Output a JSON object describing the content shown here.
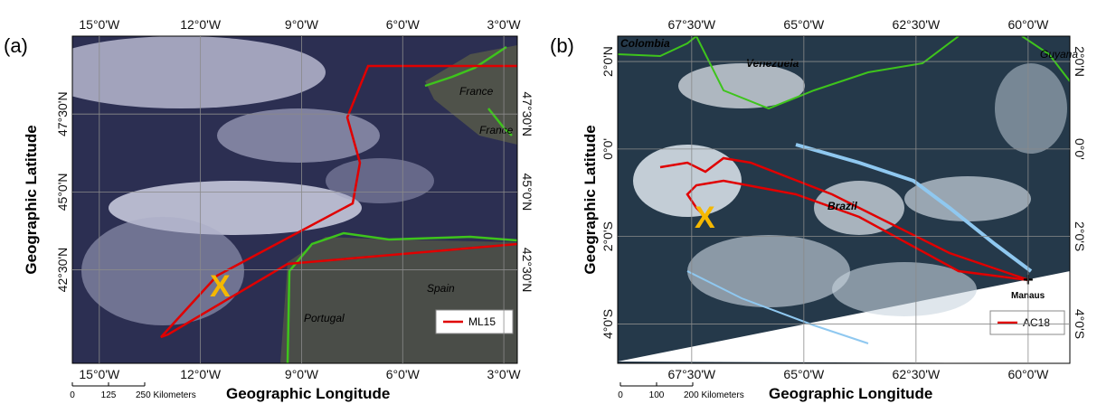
{
  "panels": [
    {
      "label": "(a)",
      "y_axis_title": "Geographic Latitude",
      "x_axis_title": "Geographic Longitude",
      "xlim": [
        -15.8,
        -2.6
      ],
      "ylim": [
        39.5,
        50
      ],
      "xticks": [
        {
          "value": -15,
          "label": "15°0'W"
        },
        {
          "value": -12,
          "label": "12°0'W"
        },
        {
          "value": -9,
          "label": "9°0'W"
        },
        {
          "value": -6,
          "label": "6°0'W"
        },
        {
          "value": -3,
          "label": "3°0'W"
        }
      ],
      "yticks": [
        {
          "value": 47.5,
          "label": "47°30'N"
        },
        {
          "value": 45,
          "label": "45°0'N"
        },
        {
          "value": 42.5,
          "label": "42°30'N"
        }
      ],
      "places": [
        "France",
        "France",
        "Spain",
        "Portugal"
      ],
      "legend": "ML15",
      "scale": [
        "0",
        "125",
        "250 Kilometers"
      ]
    },
    {
      "label": "(b)",
      "y_axis_title": "Geographic Latitude",
      "x_axis_title": "Geographic Longitude",
      "xlim": [
        -69.15,
        -59.07
      ],
      "ylim": [
        -4.9,
        2.58
      ],
      "xticks": [
        {
          "value": -67.5,
          "label": "67°30'W"
        },
        {
          "value": -65,
          "label": "65°0'W"
        },
        {
          "value": -62.5,
          "label": "62°30'W"
        },
        {
          "value": -60,
          "label": "60°0'W"
        }
      ],
      "yticks": [
        {
          "value": 2,
          "label": "2°0'N"
        },
        {
          "value": 0,
          "label": "0°0'"
        },
        {
          "value": -2,
          "label": "2°0'S"
        },
        {
          "value": -4,
          "label": "4°0'S"
        }
      ],
      "places": [
        "Colombia",
        "Venezuela",
        "Guyana",
        "Brazil",
        "Manaus"
      ],
      "legend": "AC18",
      "scale": [
        "0",
        "100",
        "200 Kilometers"
      ]
    }
  ]
}
